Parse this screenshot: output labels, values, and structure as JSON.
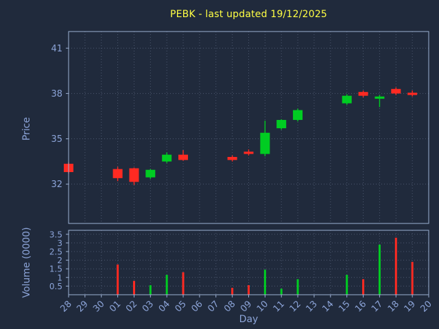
{
  "chart_data": {
    "type": "candlestick",
    "title": "PEBK - last updated 19/12/2025",
    "xlabel": "Day",
    "ylabel_price": "Price",
    "ylabel_volume": "Volume (0000)",
    "x_ticks": [
      "28",
      "29",
      "30",
      "01",
      "02",
      "03",
      "04",
      "05",
      "06",
      "07",
      "08",
      "09",
      "10",
      "11",
      "12",
      "13",
      "14",
      "15",
      "16",
      "17",
      "18",
      "19",
      "20"
    ],
    "price_ticks": [
      32,
      35,
      38,
      41
    ],
    "price_ylim": [
      29.4,
      42.1
    ],
    "volume_ticks": [
      0.5,
      1,
      1.5,
      2,
      2.5,
      3,
      3.5
    ],
    "volume_ylim": [
      0,
      3.73
    ],
    "grid": true,
    "legend_position": "none",
    "colors": {
      "background": "#202a3c",
      "up": "#00cc22",
      "down": "#ff2a22",
      "title": "#ffff44",
      "axis": "#9db1d4",
      "tick_text": "#8ca4d8",
      "grid": "#4d5870"
    },
    "candles": [
      {
        "day": "28",
        "open": 33.35,
        "high": 33.45,
        "low": 32.7,
        "close": 32.8,
        "volume": 0
      },
      {
        "day": "01",
        "open": 33.0,
        "high": 33.15,
        "low": 32.2,
        "close": 32.4,
        "volume": 1.75
      },
      {
        "day": "02",
        "open": 33.05,
        "high": 33.1,
        "low": 31.95,
        "close": 32.15,
        "volume": 0.8
      },
      {
        "day": "03",
        "open": 32.45,
        "high": 33.0,
        "low": 32.35,
        "close": 32.95,
        "volume": 0.55
      },
      {
        "day": "04",
        "open": 33.5,
        "high": 34.1,
        "low": 33.4,
        "close": 33.95,
        "volume": 1.15
      },
      {
        "day": "05",
        "open": 33.95,
        "high": 34.25,
        "low": 33.55,
        "close": 33.6,
        "volume": 1.3
      },
      {
        "day": "08",
        "open": 33.8,
        "high": 33.9,
        "low": 33.5,
        "close": 33.6,
        "volume": 0.4
      },
      {
        "day": "09",
        "open": 34.15,
        "high": 34.3,
        "low": 33.9,
        "close": 34.0,
        "volume": 0.55
      },
      {
        "day": "10",
        "open": 34.0,
        "high": 36.2,
        "low": 33.85,
        "close": 35.4,
        "volume": 1.45
      },
      {
        "day": "11",
        "open": 35.7,
        "high": 36.3,
        "low": 35.6,
        "close": 36.25,
        "volume": 0.35
      },
      {
        "day": "12",
        "open": 36.25,
        "high": 37.0,
        "low": 36.15,
        "close": 36.9,
        "volume": 0.9
      },
      {
        "day": "15",
        "open": 37.35,
        "high": 37.95,
        "low": 37.25,
        "close": 37.85,
        "volume": 1.15
      },
      {
        "day": "16",
        "open": 38.1,
        "high": 38.2,
        "low": 37.75,
        "close": 37.85,
        "volume": 0.9
      },
      {
        "day": "17",
        "open": 37.65,
        "high": 37.9,
        "low": 37.1,
        "close": 37.8,
        "volume": 2.9
      },
      {
        "day": "18",
        "open": 38.3,
        "high": 38.4,
        "low": 37.9,
        "close": 38.0,
        "volume": 3.3
      },
      {
        "day": "19",
        "open": 38.05,
        "high": 38.2,
        "low": 37.8,
        "close": 37.9,
        "volume": 1.9
      }
    ]
  }
}
